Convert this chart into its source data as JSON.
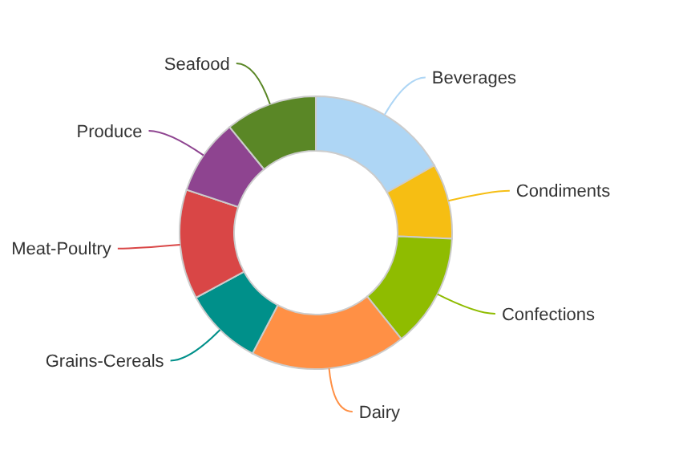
{
  "chart_data": {
    "type": "donut",
    "categories": [
      "Beverages",
      "Condiments",
      "Confections",
      "Dairy",
      "Grains-Cereals",
      "Meat-Poultry",
      "Produce",
      "Seafood"
    ],
    "values": [
      16.8,
      8.9,
      13.5,
      18.5,
      9.4,
      13.0,
      9.0,
      10.9
    ],
    "colors": [
      "#aed6f5",
      "#f6be13",
      "#8fbc00",
      "#ff9045",
      "#00908a",
      "#d94646",
      "#8e4490",
      "#5a8726"
    ]
  }
}
